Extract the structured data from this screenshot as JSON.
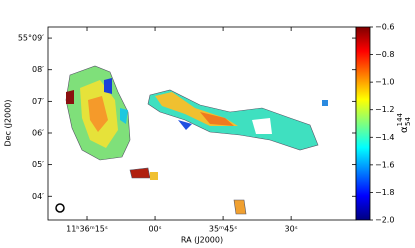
{
  "chart_data": {
    "type": "image",
    "xlabel": "RA (J2000)",
    "ylabel": "Dec (J2000)",
    "xlim": [
      2183.6,
      2115.7
    ],
    "xticks": [
      {
        "value": 2175,
        "label": "11ʰ36ᵐ15ˢ"
      },
      {
        "value": 2160,
        "label": "00ˢ"
      },
      {
        "value": 2145,
        "label": "35ᵐ45ˢ"
      },
      {
        "value": 2130,
        "label": "30ˢ"
      }
    ],
    "ylim": [
      3.25,
      9.35
    ],
    "yticks": [
      {
        "value": 9,
        "label": "55°09′"
      },
      {
        "value": 8,
        "label": "08′"
      },
      {
        "value": 7,
        "label": "07′"
      },
      {
        "value": 6,
        "label": "06′"
      },
      {
        "value": 5,
        "label": "05′"
      },
      {
        "value": 4,
        "label": "04′"
      }
    ],
    "colormap": "jet",
    "colorbar_label": {
      "symbol": "α",
      "superscript": "144",
      "subscript": "54"
    },
    "clim": [
      -2.0,
      -0.6
    ],
    "cticks": [
      {
        "value": -0.6,
        "label": "−0.6"
      },
      {
        "value": -0.8,
        "label": "−0.8"
      },
      {
        "value": -1.0,
        "label": "−1.0"
      },
      {
        "value": -1.2,
        "label": "−1.2"
      },
      {
        "value": -1.4,
        "label": "−1.4"
      },
      {
        "value": -1.6,
        "label": "−1.6"
      },
      {
        "value": -1.8,
        "label": "−1.8"
      },
      {
        "value": -2.0,
        "label": "−2.0"
      }
    ]
  }
}
